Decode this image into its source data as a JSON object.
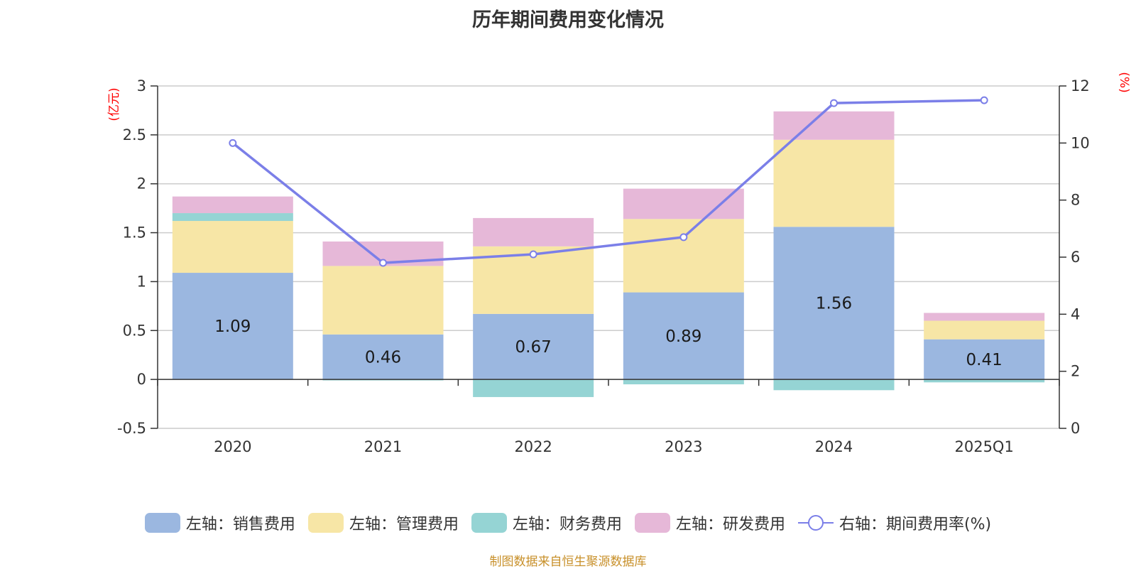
{
  "title": "历年期间费用变化情况",
  "source_note": "制图数据来自恒生聚源数据库",
  "colors": {
    "sales": "#9bb7e0",
    "admin": "#f7e6a6",
    "finance": "#95d4d4",
    "rnd": "#e6b8d8",
    "rate_line": "#7b7fe8",
    "unit_text": "#ff0000",
    "source_text": "#c8902a"
  },
  "legend": [
    {
      "key": "sales",
      "label": "左轴：销售费用"
    },
    {
      "key": "admin",
      "label": "左轴：管理费用"
    },
    {
      "key": "finance",
      "label": "左轴：财务费用"
    },
    {
      "key": "rnd",
      "label": "左轴：研发费用"
    },
    {
      "key": "rate",
      "label": "右轴：期间费用率(%)"
    }
  ],
  "chart_data": {
    "type": "bar",
    "title": "历年期间费用变化情况",
    "categories": [
      "2020",
      "2021",
      "2022",
      "2023",
      "2024",
      "2025Q1"
    ],
    "left_axis": {
      "unit": "(亿元)",
      "ylim": [
        -0.5,
        3
      ],
      "ticks": [
        -0.5,
        0,
        0.5,
        1,
        1.5,
        2,
        2.5,
        3
      ],
      "tick_labels": [
        "-0.5",
        "0",
        "0.5",
        "1",
        "1.5",
        "2",
        "2.5",
        "3"
      ]
    },
    "right_axis": {
      "unit": "(%)",
      "ylim": [
        0,
        12
      ],
      "ticks": [
        0,
        2,
        4,
        6,
        8,
        10,
        12
      ],
      "tick_labels": [
        "0",
        "2",
        "4",
        "6",
        "8",
        "10",
        "12"
      ]
    },
    "stacked": true,
    "grid": true,
    "legend_position": "bottom",
    "series": [
      {
        "key": "sales",
        "name": "左轴：销售费用",
        "axis": "left",
        "values": [
          1.09,
          0.46,
          0.67,
          0.89,
          1.56,
          0.41
        ],
        "labels": [
          "1.09",
          "0.46",
          "0.67",
          "0.89",
          "1.56",
          "0.41"
        ]
      },
      {
        "key": "admin",
        "name": "左轴：管理费用",
        "axis": "left",
        "values": [
          0.53,
          0.7,
          0.69,
          0.75,
          0.89,
          0.19
        ]
      },
      {
        "key": "finance",
        "name": "左轴：财务费用",
        "axis": "left",
        "values": [
          0.08,
          -0.01,
          -0.18,
          -0.05,
          -0.11,
          -0.03
        ]
      },
      {
        "key": "rnd",
        "name": "左轴：研发费用",
        "axis": "left",
        "values": [
          0.17,
          0.25,
          0.29,
          0.31,
          0.29,
          0.08
        ]
      },
      {
        "key": "rate",
        "name": "右轴：期间费用率(%)",
        "axis": "right",
        "type": "line",
        "values": [
          10.0,
          5.8,
          6.1,
          6.7,
          11.4,
          11.5
        ]
      }
    ]
  }
}
